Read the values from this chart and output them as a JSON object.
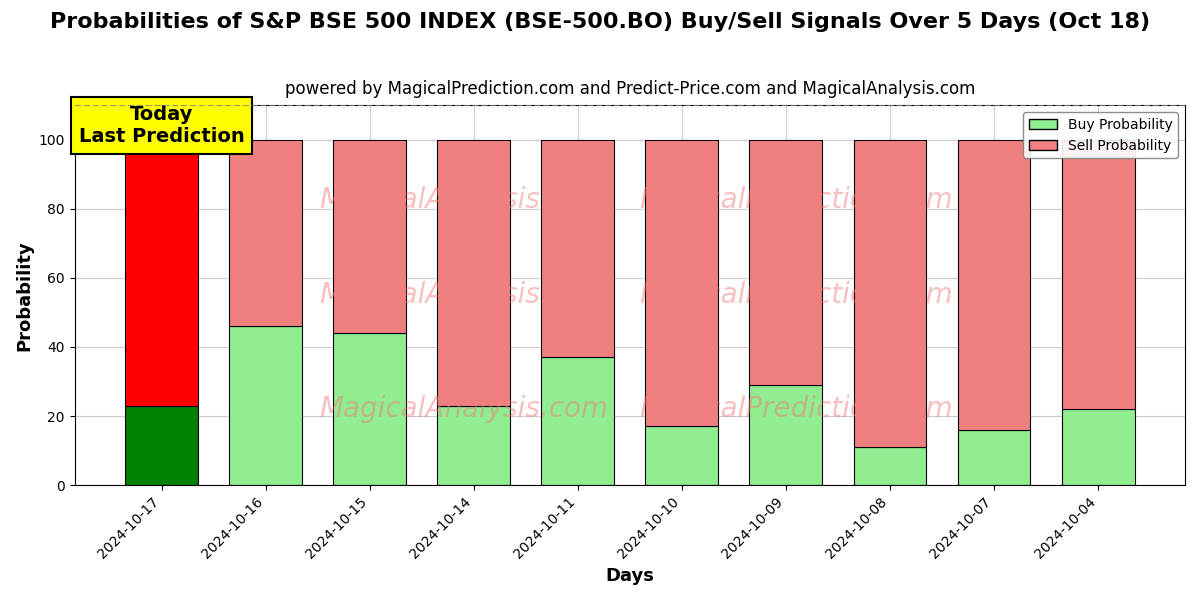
{
  "title": "Probabilities of S&P BSE 500 INDEX (BSE-500.BO) Buy/Sell Signals Over 5 Days (Oct 18)",
  "subtitle": "powered by MagicalPrediction.com and Predict-Price.com and MagicalAnalysis.com",
  "xlabel": "Days",
  "ylabel": "Probability",
  "dates": [
    "2024-10-17",
    "2024-10-16",
    "2024-10-15",
    "2024-10-14",
    "2024-10-11",
    "2024-10-10",
    "2024-10-09",
    "2024-10-08",
    "2024-10-07",
    "2024-10-04"
  ],
  "buy_probs": [
    23,
    46,
    44,
    23,
    37,
    17,
    29,
    11,
    16,
    22
  ],
  "sell_probs": [
    77,
    54,
    56,
    77,
    63,
    83,
    71,
    89,
    84,
    78
  ],
  "today_buy_color": "#008000",
  "today_sell_color": "#ff0000",
  "buy_color": "#90ee90",
  "sell_color": "#f08080",
  "today_annotation": "Today\nLast Prediction",
  "annotation_bg_color": "#ffff00",
  "ylim": [
    0,
    110
  ],
  "dashed_line_y": 110,
  "watermark_text1": "MagicalAnalysis.com",
  "watermark_text2": "MagicalPrediction.com",
  "background_color": "#ffffff",
  "grid_color": "#cccccc",
  "title_fontsize": 16,
  "subtitle_fontsize": 12,
  "bar_edge_color": "#000000"
}
